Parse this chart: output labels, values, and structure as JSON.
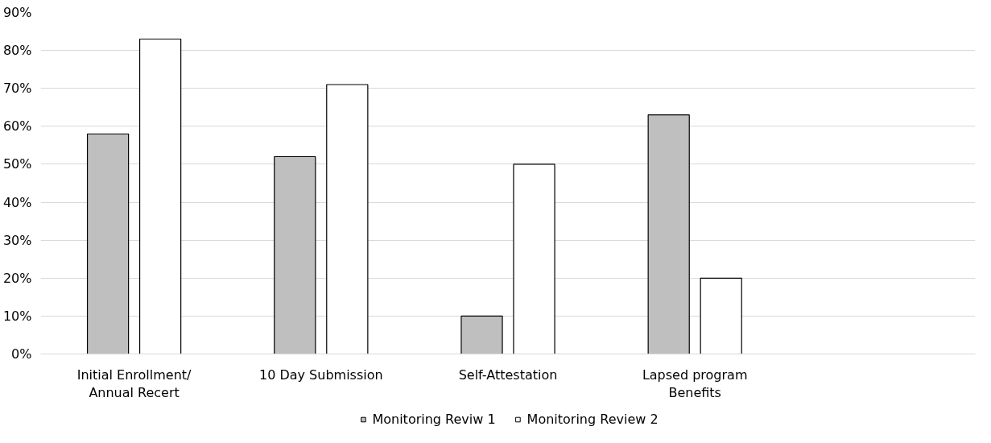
{
  "chart_data": {
    "type": "bar",
    "categories": [
      "Initial Enrollment/\nAnnual Recert",
      "10 Day Submission",
      "Self-Attestation",
      "Lapsed program\nBenefits",
      null
    ],
    "series": [
      {
        "name": "Monitoring Reviw 1",
        "color": "#bfbfbf",
        "values": [
          58,
          52,
          10,
          63,
          null
        ]
      },
      {
        "name": "Monitoring Review 2",
        "color": "#ffffff",
        "values": [
          83,
          71,
          50,
          20,
          null
        ]
      }
    ],
    "ylim": [
      0,
      90
    ],
    "yticks": [
      {
        "value": 0,
        "label": "0%"
      },
      {
        "value": 10,
        "label": "10%"
      },
      {
        "value": 20,
        "label": "20%"
      },
      {
        "value": 30,
        "label": "30%"
      },
      {
        "value": 40,
        "label": "40%"
      },
      {
        "value": 50,
        "label": "50%"
      },
      {
        "value": 60,
        "label": "60%"
      },
      {
        "value": 70,
        "label": "70%"
      },
      {
        "value": 80,
        "label": "80%"
      },
      {
        "value": 90,
        "label": "90%"
      }
    ],
    "grid": "y",
    "legend": "bottom"
  }
}
